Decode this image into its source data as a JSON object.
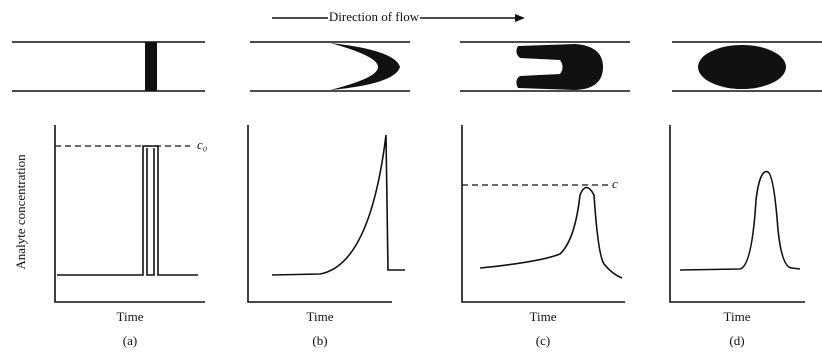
{
  "header": {
    "direction": "Direction of flow"
  },
  "y_axis_label": "Analyte concentration",
  "panels": [
    {
      "time_label": "Time",
      "caption": "(a)",
      "level_label": "c₀"
    },
    {
      "time_label": "Time",
      "caption": "(b)"
    },
    {
      "time_label": "Time",
      "caption": "(c)",
      "level_label": "c"
    },
    {
      "time_label": "Time",
      "caption": "(d)"
    }
  ]
}
